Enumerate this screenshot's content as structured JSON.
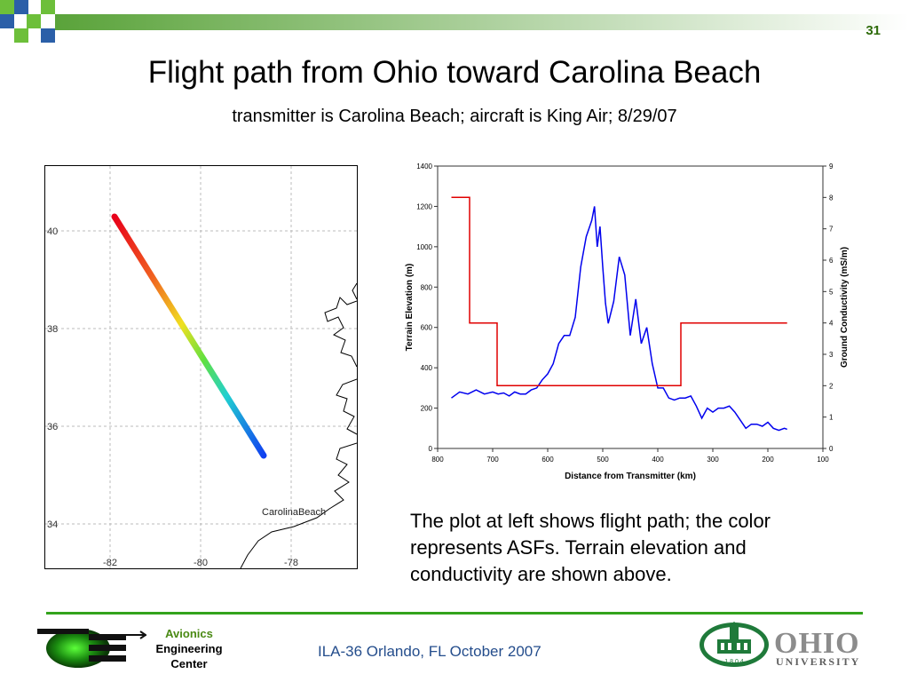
{
  "slide": {
    "page_number": "31",
    "title": "Flight path from Ohio toward Carolina Beach",
    "subtitle": "transmitter is Carolina Beach; aircraft is King Air; 8/29/07",
    "description": "The plot at left shows flight path; the color represents ASFs.  Terrain elevation and conductivity are shown above."
  },
  "map": {
    "label": "CarolinaBeach",
    "lat_ticks": [
      "40",
      "38",
      "36",
      "34"
    ],
    "lon_ticks": [
      "-82",
      "-80",
      "-78"
    ],
    "flight_path": {
      "start": [
        -82.1,
        40.3
      ],
      "end": [
        -78.6,
        35.4
      ]
    }
  },
  "chart_data": {
    "type": "line",
    "xlabel": "Distance from Transmitter (km)",
    "ylabel": "Terrain Elevation (m)",
    "y2label": "Ground Conductivity (mS/m)",
    "x_ticks": [
      "800",
      "700",
      "600",
      "500",
      "400",
      "300",
      "200",
      "100"
    ],
    "y_ticks": [
      "0",
      "200",
      "400",
      "600",
      "800",
      "1000",
      "1200",
      "1400"
    ],
    "y2_ticks": [
      "0",
      "1",
      "2",
      "3",
      "4",
      "5",
      "6",
      "7",
      "8",
      "9"
    ],
    "xlim": [
      800,
      100
    ],
    "ylim": [
      0,
      1400
    ],
    "y2lim": [
      0,
      9
    ],
    "series": [
      {
        "color": "#0000ee",
        "x": [
          775,
          760,
          745,
          730,
          715,
          700,
          690,
          680,
          670,
          660,
          650,
          640,
          630,
          620,
          610,
          600,
          590,
          580,
          570,
          560,
          550,
          540,
          530,
          520,
          515,
          510,
          505,
          500,
          495,
          490,
          480,
          470,
          460,
          450,
          440,
          430,
          420,
          410,
          400,
          390,
          380,
          370,
          360,
          350,
          340,
          330,
          320,
          310,
          300,
          290,
          280,
          270,
          260,
          250,
          240,
          230,
          220,
          210,
          200,
          190,
          180,
          170,
          165
        ],
        "values": [
          250,
          280,
          270,
          290,
          270,
          280,
          270,
          275,
          260,
          280,
          270,
          270,
          290,
          300,
          340,
          370,
          420,
          520,
          560,
          560,
          650,
          900,
          1050,
          1130,
          1200,
          1000,
          1100,
          900,
          720,
          620,
          730,
          950,
          860,
          560,
          740,
          520,
          600,
          420,
          300,
          300,
          250,
          240,
          250,
          250,
          260,
          210,
          150,
          200,
          180,
          200,
          200,
          210,
          180,
          140,
          100,
          120,
          120,
          110,
          130,
          100,
          90,
          100,
          95
        ]
      },
      {
        "color": "#e00000",
        "x": [
          775,
          742,
          742,
          692,
          692,
          358,
          358,
          165
        ],
        "values": [
          8.0,
          8.0,
          4.0,
          4.0,
          2.0,
          2.0,
          4.0,
          4.0
        ]
      }
    ]
  },
  "footer": {
    "aec_lines": [
      "Avionics",
      "Engineering",
      "Center"
    ],
    "event": "ILA-36  Orlando, FL  October 2007",
    "university_name": "OHIO",
    "university_sub": "UNIVERSITY",
    "seal_year": "1 8 0 4"
  },
  "colors": {
    "accent_green": "#33a31c",
    "footer_blue": "#244d8c"
  }
}
